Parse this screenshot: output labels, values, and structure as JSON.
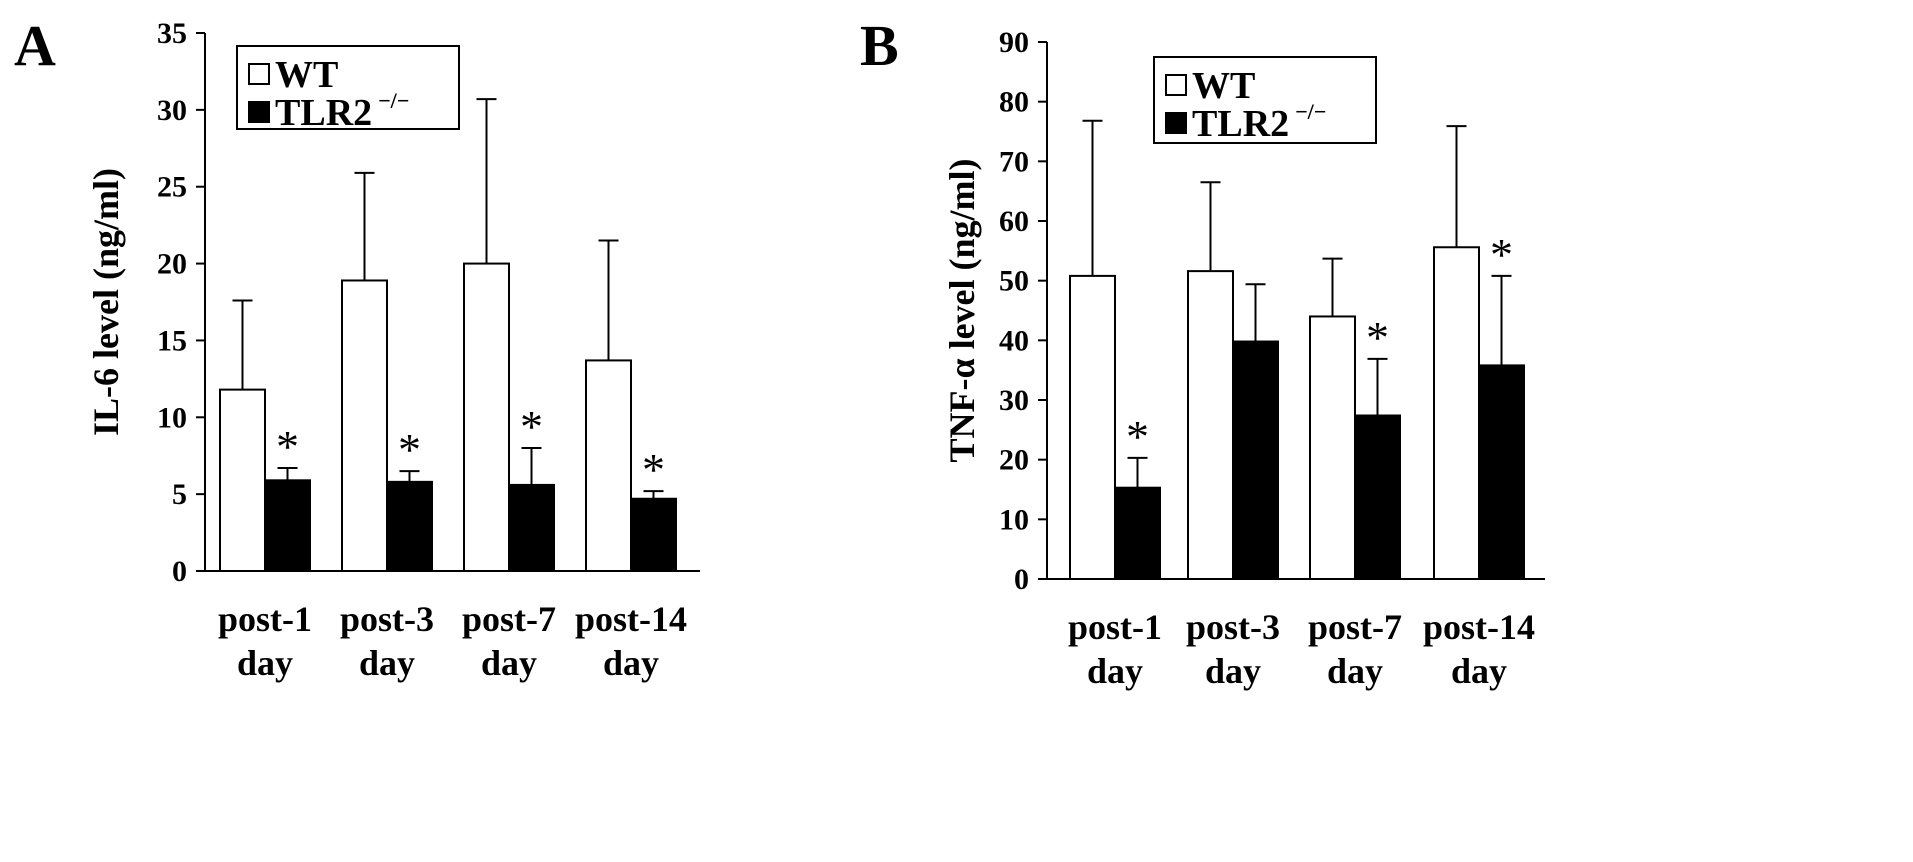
{
  "chart_data": [
    {
      "type": "bar",
      "panel_label": "A",
      "ylabel": "IL-6 level (ng/ml)",
      "ylim": [
        0,
        35
      ],
      "yticks": [
        0,
        5,
        10,
        15,
        20,
        25,
        30,
        35
      ],
      "categories": [
        [
          "post-1",
          "day"
        ],
        [
          "post-3",
          "day"
        ],
        [
          "post-7",
          "day"
        ],
        [
          "post-14",
          "day"
        ]
      ],
      "legend": {
        "position": "top-left",
        "entries": [
          "WT",
          "TLR2"
        ],
        "superscript": "−/−"
      },
      "grid": false,
      "series": [
        {
          "name": "WT",
          "fill": "#ffffff",
          "values": [
            11.8,
            18.9,
            20.0,
            13.7
          ],
          "errors": [
            5.8,
            7.0,
            10.7,
            7.8
          ],
          "significance": [
            "",
            "",
            "",
            ""
          ]
        },
        {
          "name": "TLR2−/−",
          "fill": "#000000",
          "values": [
            5.9,
            5.8,
            5.6,
            4.7
          ],
          "errors": [
            0.8,
            0.7,
            2.4,
            0.5
          ],
          "significance": [
            "*",
            "*",
            "*",
            "*"
          ]
        }
      ]
    },
    {
      "type": "bar",
      "panel_label": "B",
      "ylabel": "TNF-α level (ng/ml)",
      "ylim": [
        0,
        90
      ],
      "yticks": [
        0,
        10,
        20,
        30,
        40,
        50,
        60,
        70,
        80,
        90
      ],
      "categories": [
        [
          "post-1",
          "day"
        ],
        [
          "post-3",
          "day"
        ],
        [
          "post-7",
          "day"
        ],
        [
          "post-14",
          "day"
        ]
      ],
      "legend": {
        "position": "top-left",
        "entries": [
          "WT",
          "TLR2"
        ],
        "superscript": "−/−"
      },
      "grid": false,
      "series": [
        {
          "name": "WT",
          "fill": "#ffffff",
          "values": [
            50.8,
            51.6,
            44.0,
            55.6
          ],
          "errors": [
            26.0,
            14.9,
            9.7,
            20.3
          ],
          "significance": [
            "",
            "",
            "",
            ""
          ]
        },
        {
          "name": "TLR2−/−",
          "fill": "#000000",
          "values": [
            15.3,
            39.8,
            27.4,
            35.8
          ],
          "errors": [
            5.0,
            9.6,
            9.5,
            15.0
          ],
          "significance": [
            "*",
            "",
            "*",
            "*"
          ]
        }
      ]
    }
  ]
}
